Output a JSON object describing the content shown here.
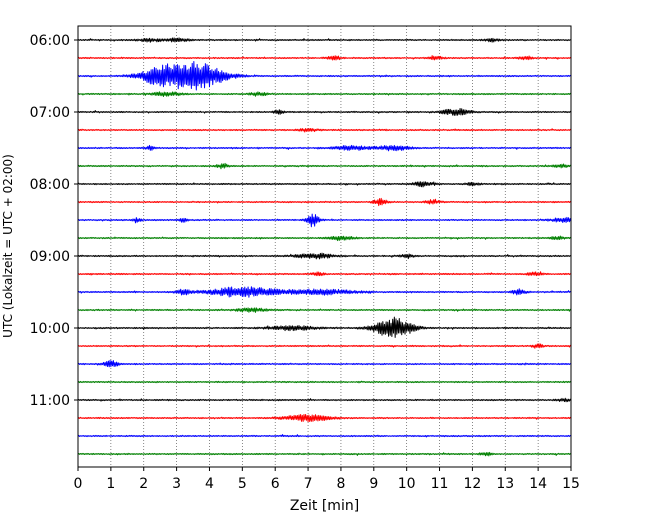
{
  "chart_data": {
    "type": "line",
    "title": "",
    "xlabel": "Zeit  [min]",
    "ylabel": "UTC (Lokalzeit = UTC + 02:00)",
    "xlim": [
      0,
      15
    ],
    "x_ticks": [
      "0",
      "1",
      "2",
      "3",
      "4",
      "5",
      "6",
      "7",
      "8",
      "9",
      "10",
      "11",
      "12",
      "13",
      "14",
      "15"
    ],
    "y_time_labels": [
      {
        "trace": 0,
        "label": "06:00"
      },
      {
        "trace": 4,
        "label": "07:00"
      },
      {
        "trace": 8,
        "label": "08:00"
      },
      {
        "trace": 12,
        "label": "09:00"
      },
      {
        "trace": 16,
        "label": "10:00"
      },
      {
        "trace": 20,
        "label": "11:00"
      }
    ],
    "grid": "vertical dotted",
    "trace_interval_min": 15,
    "color_cycle": [
      "#000000",
      "#ff0000",
      "#0000ff",
      "#008000"
    ],
    "traces": [
      {
        "start": "06:00",
        "events": [
          {
            "t": 2.2,
            "amp": 0.3,
            "dur": 0.5
          },
          {
            "t": 3.0,
            "amp": 0.3,
            "dur": 0.5
          },
          {
            "t": 12.6,
            "amp": 0.3,
            "dur": 0.3
          }
        ]
      },
      {
        "start": "06:15",
        "events": [
          {
            "t": 7.8,
            "amp": 0.35,
            "dur": 0.3
          },
          {
            "t": 10.9,
            "amp": 0.3,
            "dur": 0.3
          },
          {
            "t": 13.6,
            "amp": 0.3,
            "dur": 0.3
          }
        ]
      },
      {
        "start": "06:30",
        "events": [
          {
            "t": 2.5,
            "amp": 1.6,
            "dur": 0.9
          },
          {
            "t": 3.6,
            "amp": 2.6,
            "dur": 1.2
          }
        ]
      },
      {
        "start": "06:45",
        "events": [
          {
            "t": 2.7,
            "amp": 0.4,
            "dur": 0.6
          },
          {
            "t": 5.5,
            "amp": 0.3,
            "dur": 0.4
          }
        ]
      },
      {
        "start": "07:00",
        "events": [
          {
            "t": 6.1,
            "amp": 0.4,
            "dur": 0.2
          },
          {
            "t": 11.5,
            "amp": 0.6,
            "dur": 0.6
          }
        ]
      },
      {
        "start": "07:15",
        "events": [
          {
            "t": 7.0,
            "amp": 0.3,
            "dur": 0.4
          }
        ]
      },
      {
        "start": "07:30",
        "events": [
          {
            "t": 2.2,
            "amp": 0.4,
            "dur": 0.2
          },
          {
            "t": 8.3,
            "amp": 0.4,
            "dur": 0.8
          },
          {
            "t": 9.6,
            "amp": 0.5,
            "dur": 0.7
          }
        ]
      },
      {
        "start": "07:45",
        "events": [
          {
            "t": 4.4,
            "amp": 0.35,
            "dur": 0.3
          },
          {
            "t": 14.7,
            "amp": 0.3,
            "dur": 0.3
          }
        ]
      },
      {
        "start": "08:00",
        "events": [
          {
            "t": 10.5,
            "amp": 0.5,
            "dur": 0.4
          },
          {
            "t": 12.0,
            "amp": 0.3,
            "dur": 0.3
          }
        ]
      },
      {
        "start": "08:15",
        "events": [
          {
            "t": 9.2,
            "amp": 0.6,
            "dur": 0.3
          },
          {
            "t": 10.8,
            "amp": 0.4,
            "dur": 0.3
          }
        ]
      },
      {
        "start": "08:30",
        "events": [
          {
            "t": 1.8,
            "amp": 0.35,
            "dur": 0.2
          },
          {
            "t": 3.2,
            "amp": 0.35,
            "dur": 0.2
          },
          {
            "t": 7.15,
            "amp": 1.3,
            "dur": 0.25
          },
          {
            "t": 14.8,
            "amp": 0.45,
            "dur": 0.5
          }
        ]
      },
      {
        "start": "08:45",
        "events": [
          {
            "t": 8.0,
            "amp": 0.4,
            "dur": 0.5
          },
          {
            "t": 14.6,
            "amp": 0.3,
            "dur": 0.3
          }
        ]
      },
      {
        "start": "09:00",
        "events": [
          {
            "t": 7.2,
            "amp": 0.5,
            "dur": 0.8
          },
          {
            "t": 10.0,
            "amp": 0.3,
            "dur": 0.3
          }
        ]
      },
      {
        "start": "09:15",
        "events": [
          {
            "t": 7.3,
            "amp": 0.3,
            "dur": 0.3
          },
          {
            "t": 13.9,
            "amp": 0.3,
            "dur": 0.3
          }
        ]
      },
      {
        "start": "09:30",
        "events": [
          {
            "t": 3.2,
            "amp": 0.5,
            "dur": 0.3
          },
          {
            "t": 5.0,
            "amp": 1.0,
            "dur": 1.4
          },
          {
            "t": 7.3,
            "amp": 0.5,
            "dur": 1.6
          },
          {
            "t": 13.4,
            "amp": 0.5,
            "dur": 0.3
          }
        ]
      },
      {
        "start": "09:45",
        "events": [
          {
            "t": 5.3,
            "amp": 0.35,
            "dur": 0.7
          }
        ]
      },
      {
        "start": "10:00",
        "events": [
          {
            "t": 6.5,
            "amp": 0.45,
            "dur": 1.0
          },
          {
            "t": 9.6,
            "amp": 2.0,
            "dur": 0.8
          }
        ]
      },
      {
        "start": "10:15",
        "events": [
          {
            "t": 14.0,
            "amp": 0.4,
            "dur": 0.2
          }
        ]
      },
      {
        "start": "10:30",
        "events": [
          {
            "t": 1.0,
            "amp": 0.6,
            "dur": 0.3
          }
        ]
      },
      {
        "start": "10:45",
        "events": []
      },
      {
        "start": "11:00",
        "events": [
          {
            "t": 14.8,
            "amp": 0.3,
            "dur": 0.3
          }
        ]
      },
      {
        "start": "11:15",
        "events": [
          {
            "t": 7.0,
            "amp": 0.6,
            "dur": 1.0
          }
        ]
      },
      {
        "start": "11:30",
        "events": []
      },
      {
        "start": "11:45",
        "events": [
          {
            "t": 12.4,
            "amp": 0.3,
            "dur": 0.3
          }
        ]
      }
    ]
  }
}
